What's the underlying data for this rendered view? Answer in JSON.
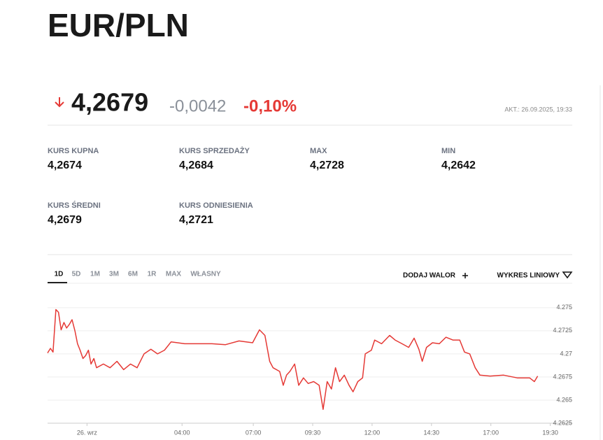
{
  "header": {
    "title": "EUR/PLN"
  },
  "quote": {
    "price": "4,2679",
    "change": "-0,0042",
    "change_pct": "-0,10%",
    "updated": "AKT.: 26.09.2025, 19:33"
  },
  "stats": [
    {
      "label": "KURS KUPNA",
      "value": "4,2674"
    },
    {
      "label": "KURS SPRZEDAŻY",
      "value": "4,2684"
    },
    {
      "label": "MAX",
      "value": "4,2728"
    },
    {
      "label": "MIN",
      "value": "4,2642"
    },
    {
      "label": "KURS ŚREDNI",
      "value": "4,2679"
    },
    {
      "label": "KURS ODNIESIENIA",
      "value": "4,2721"
    }
  ],
  "tabs": [
    "1D",
    "5D",
    "1M",
    "3M",
    "6M",
    "1R",
    "MAX",
    "WŁASNY"
  ],
  "actions": {
    "add": "DODAJ WALOR",
    "chart_type": "WYKRES LINIOWY"
  },
  "chart_data": {
    "type": "line",
    "color": "#e53935",
    "grid": true,
    "x": [
      -1.66,
      -1.54,
      -1.43,
      -1.31,
      -1.2,
      -1.09,
      -0.97,
      -0.86,
      -0.74,
      -0.63,
      -0.51,
      -0.4,
      -0.29,
      -0.17,
      -0.06,
      0.06,
      0.17,
      0.29,
      0.4,
      0.69,
      0.97,
      1.26,
      1.54,
      1.83,
      2.11,
      2.4,
      2.69,
      2.97,
      3.26,
      3.54,
      4.11,
      4.69,
      5.26,
      5.83,
      6.4,
      6.97,
      7.26,
      7.49,
      7.69,
      7.83,
      8.11,
      8.26,
      8.4,
      8.54,
      8.74,
      8.91,
      9.11,
      9.31,
      9.54,
      9.77,
      9.94,
      10.11,
      10.29,
      10.46,
      10.63,
      10.83,
      11.03,
      11.2,
      11.4,
      11.6,
      11.71,
      11.97,
      12.11,
      12.4,
      12.74,
      12.97,
      13.26,
      13.54,
      13.77,
      13.97,
      14.11,
      14.29,
      14.54,
      14.83,
      15.11,
      15.4,
      15.69,
      15.89,
      16.11,
      16.34,
      16.54,
      16.97,
      17.54,
      18.11,
      18.63,
      18.83,
      18.97
    ],
    "values": [
      4.2701,
      4.2706,
      4.2702,
      4.2748,
      4.2745,
      4.2726,
      4.2734,
      4.2728,
      4.2732,
      4.2737,
      4.2725,
      4.2711,
      4.2704,
      4.2695,
      4.2698,
      4.2704,
      4.2689,
      4.2695,
      4.2685,
      4.2689,
      4.2685,
      4.2692,
      4.2683,
      4.2689,
      4.2685,
      4.27,
      4.2705,
      4.27,
      4.2704,
      4.2713,
      4.2711,
      4.2711,
      4.2711,
      4.271,
      4.2714,
      4.2712,
      4.2726,
      4.272,
      4.2692,
      4.2685,
      4.2681,
      4.2666,
      4.2677,
      4.2681,
      4.2689,
      4.2666,
      4.2674,
      4.2668,
      4.267,
      4.2666,
      4.264,
      4.267,
      4.2662,
      4.2685,
      4.267,
      4.2677,
      4.2666,
      4.2659,
      4.267,
      4.2674,
      4.27,
      4.2704,
      4.2715,
      4.2711,
      4.272,
      4.2715,
      4.2711,
      4.2707,
      4.2717,
      4.2705,
      4.2692,
      4.2707,
      4.2712,
      4.2711,
      4.2718,
      4.2715,
      4.2715,
      4.2702,
      4.27,
      4.2685,
      4.2677,
      4.2676,
      4.2677,
      4.2674,
      4.2674,
      4.267,
      4.2676
    ],
    "xlim": [
      -1.66,
      19.6
    ],
    "xticks": [
      {
        "value": 0,
        "label": "26. wrz"
      },
      {
        "value": 4,
        "label": "04:00"
      },
      {
        "value": 7,
        "label": "07:00"
      },
      {
        "value": 9.5,
        "label": "09:30"
      },
      {
        "value": 12,
        "label": "12:00"
      },
      {
        "value": 14.5,
        "label": "14:30"
      },
      {
        "value": 17,
        "label": "17:00"
      },
      {
        "value": 19.5,
        "label": "19:30"
      }
    ],
    "ylim": [
      4.2625,
      4.2765
    ],
    "yticks": [
      4.2625,
      4.265,
      4.2675,
      4.27,
      4.2725,
      4.275
    ]
  }
}
